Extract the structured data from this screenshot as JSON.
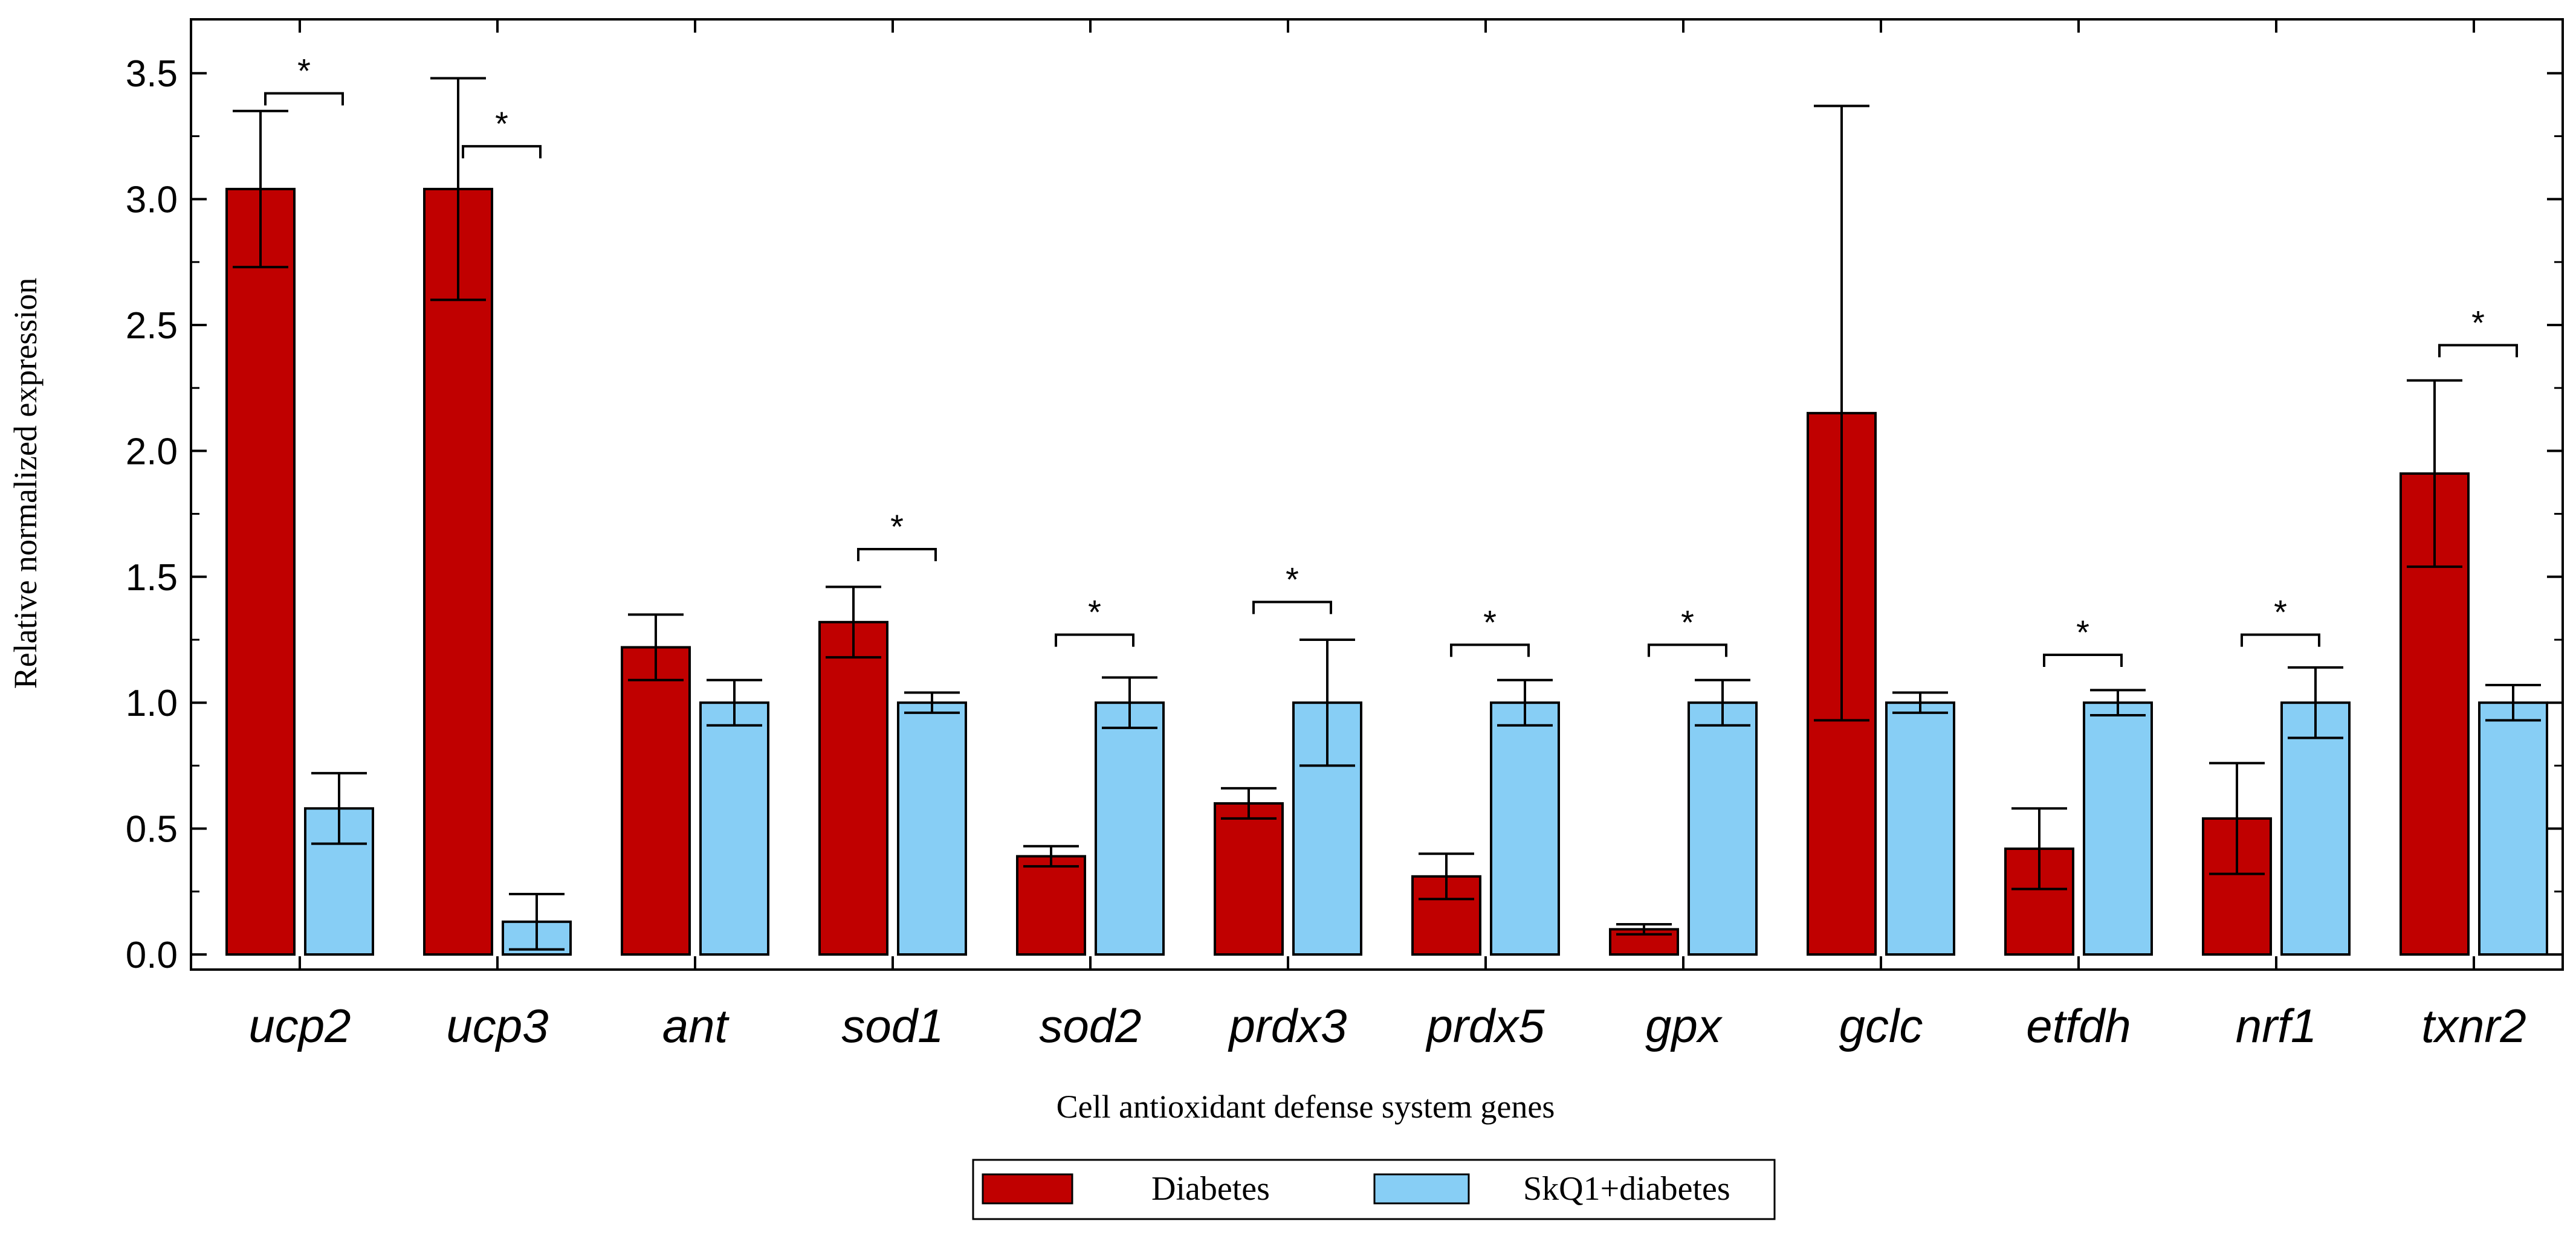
{
  "chart_data": {
    "type": "bar",
    "title": "",
    "xlabel": "Cell antioxidant defense system genes",
    "ylabel": "Relative normalized expression",
    "ylim": [
      0,
      3.6
    ],
    "yticks": [
      "0.0",
      "0.5",
      "1.0",
      "1.5",
      "2.0",
      "2.5",
      "3.0",
      "3.5"
    ],
    "categories": [
      "ucp2",
      "ucp3",
      "ant",
      "sod1",
      "sod2",
      "prdx3",
      "prdx5",
      "gpx",
      "gclc",
      "etfdh",
      "nrf1",
      "txnr2"
    ],
    "series": [
      {
        "name": "Diabetes",
        "color": "#c00000",
        "values": [
          3.04,
          3.04,
          1.22,
          1.32,
          0.39,
          0.6,
          0.31,
          0.1,
          2.15,
          0.42,
          0.54,
          1.91
        ],
        "errors": [
          0.31,
          0.44,
          0.13,
          0.14,
          0.04,
          0.06,
          0.09,
          0.02,
          1.22,
          0.16,
          0.22,
          0.37
        ]
      },
      {
        "name": "SkQ1+diabetes",
        "color": "#87cef5",
        "values": [
          0.58,
          0.13,
          1.0,
          1.0,
          1.0,
          1.0,
          1.0,
          1.0,
          1.0,
          1.0,
          1.0,
          1.0
        ],
        "errors": [
          0.14,
          0.11,
          0.09,
          0.04,
          0.1,
          0.25,
          0.09,
          0.09,
          0.04,
          0.05,
          0.14,
          0.07
        ]
      }
    ],
    "significance": [
      {
        "category": "ucp2",
        "y": 3.42,
        "label": "*"
      },
      {
        "category": "ucp3",
        "y": 3.21,
        "label": "*"
      },
      {
        "category": "sod1",
        "y": 1.61,
        "label": "*"
      },
      {
        "category": "sod2",
        "y": 1.27,
        "label": "*"
      },
      {
        "category": "prdx3",
        "y": 1.4,
        "label": "*"
      },
      {
        "category": "prdx5",
        "y": 1.23,
        "label": "*"
      },
      {
        "category": "gpx",
        "y": 1.23,
        "label": "*"
      },
      {
        "category": "etfdh",
        "y": 1.19,
        "label": "*"
      },
      {
        "category": "nrf1",
        "y": 1.27,
        "label": "*"
      },
      {
        "category": "txnr2",
        "y": 2.42,
        "label": "*"
      }
    ],
    "legend_position": "bottom-center"
  }
}
